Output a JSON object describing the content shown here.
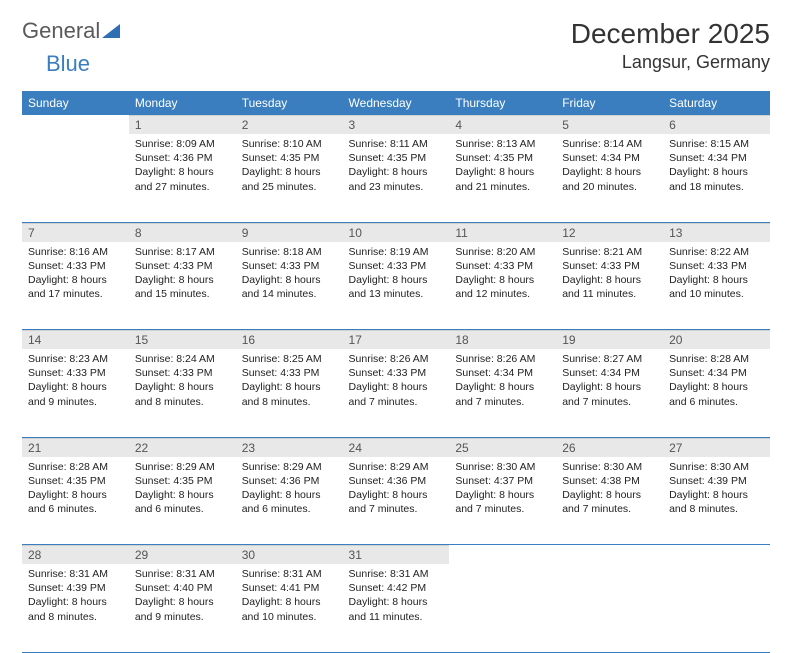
{
  "logo": {
    "word1": "General",
    "word2": "Blue"
  },
  "title": "December 2025",
  "location": "Langsur, Germany",
  "colors": {
    "header_bg": "#3a7ebf",
    "header_text": "#ffffff",
    "daynum_bg": "#e8e8e8",
    "row_border": "#3a7ebf",
    "logo_gray": "#5a5a5a",
    "logo_blue": "#3a7ebf"
  },
  "weekdays": [
    "Sunday",
    "Monday",
    "Tuesday",
    "Wednesday",
    "Thursday",
    "Friday",
    "Saturday"
  ],
  "weeks": [
    [
      null,
      {
        "n": "1",
        "sr": "8:09 AM",
        "ss": "4:36 PM",
        "dl": "8 hours and 27 minutes."
      },
      {
        "n": "2",
        "sr": "8:10 AM",
        "ss": "4:35 PM",
        "dl": "8 hours and 25 minutes."
      },
      {
        "n": "3",
        "sr": "8:11 AM",
        "ss": "4:35 PM",
        "dl": "8 hours and 23 minutes."
      },
      {
        "n": "4",
        "sr": "8:13 AM",
        "ss": "4:35 PM",
        "dl": "8 hours and 21 minutes."
      },
      {
        "n": "5",
        "sr": "8:14 AM",
        "ss": "4:34 PM",
        "dl": "8 hours and 20 minutes."
      },
      {
        "n": "6",
        "sr": "8:15 AM",
        "ss": "4:34 PM",
        "dl": "8 hours and 18 minutes."
      }
    ],
    [
      {
        "n": "7",
        "sr": "8:16 AM",
        "ss": "4:33 PM",
        "dl": "8 hours and 17 minutes."
      },
      {
        "n": "8",
        "sr": "8:17 AM",
        "ss": "4:33 PM",
        "dl": "8 hours and 15 minutes."
      },
      {
        "n": "9",
        "sr": "8:18 AM",
        "ss": "4:33 PM",
        "dl": "8 hours and 14 minutes."
      },
      {
        "n": "10",
        "sr": "8:19 AM",
        "ss": "4:33 PM",
        "dl": "8 hours and 13 minutes."
      },
      {
        "n": "11",
        "sr": "8:20 AM",
        "ss": "4:33 PM",
        "dl": "8 hours and 12 minutes."
      },
      {
        "n": "12",
        "sr": "8:21 AM",
        "ss": "4:33 PM",
        "dl": "8 hours and 11 minutes."
      },
      {
        "n": "13",
        "sr": "8:22 AM",
        "ss": "4:33 PM",
        "dl": "8 hours and 10 minutes."
      }
    ],
    [
      {
        "n": "14",
        "sr": "8:23 AM",
        "ss": "4:33 PM",
        "dl": "8 hours and 9 minutes."
      },
      {
        "n": "15",
        "sr": "8:24 AM",
        "ss": "4:33 PM",
        "dl": "8 hours and 8 minutes."
      },
      {
        "n": "16",
        "sr": "8:25 AM",
        "ss": "4:33 PM",
        "dl": "8 hours and 8 minutes."
      },
      {
        "n": "17",
        "sr": "8:26 AM",
        "ss": "4:33 PM",
        "dl": "8 hours and 7 minutes."
      },
      {
        "n": "18",
        "sr": "8:26 AM",
        "ss": "4:34 PM",
        "dl": "8 hours and 7 minutes."
      },
      {
        "n": "19",
        "sr": "8:27 AM",
        "ss": "4:34 PM",
        "dl": "8 hours and 7 minutes."
      },
      {
        "n": "20",
        "sr": "8:28 AM",
        "ss": "4:34 PM",
        "dl": "8 hours and 6 minutes."
      }
    ],
    [
      {
        "n": "21",
        "sr": "8:28 AM",
        "ss": "4:35 PM",
        "dl": "8 hours and 6 minutes."
      },
      {
        "n": "22",
        "sr": "8:29 AM",
        "ss": "4:35 PM",
        "dl": "8 hours and 6 minutes."
      },
      {
        "n": "23",
        "sr": "8:29 AM",
        "ss": "4:36 PM",
        "dl": "8 hours and 6 minutes."
      },
      {
        "n": "24",
        "sr": "8:29 AM",
        "ss": "4:36 PM",
        "dl": "8 hours and 7 minutes."
      },
      {
        "n": "25",
        "sr": "8:30 AM",
        "ss": "4:37 PM",
        "dl": "8 hours and 7 minutes."
      },
      {
        "n": "26",
        "sr": "8:30 AM",
        "ss": "4:38 PM",
        "dl": "8 hours and 7 minutes."
      },
      {
        "n": "27",
        "sr": "8:30 AM",
        "ss": "4:39 PM",
        "dl": "8 hours and 8 minutes."
      }
    ],
    [
      {
        "n": "28",
        "sr": "8:31 AM",
        "ss": "4:39 PM",
        "dl": "8 hours and 8 minutes."
      },
      {
        "n": "29",
        "sr": "8:31 AM",
        "ss": "4:40 PM",
        "dl": "8 hours and 9 minutes."
      },
      {
        "n": "30",
        "sr": "8:31 AM",
        "ss": "4:41 PM",
        "dl": "8 hours and 10 minutes."
      },
      {
        "n": "31",
        "sr": "8:31 AM",
        "ss": "4:42 PM",
        "dl": "8 hours and 11 minutes."
      },
      null,
      null,
      null
    ]
  ],
  "labels": {
    "sunrise": "Sunrise:",
    "sunset": "Sunset:",
    "daylight": "Daylight:"
  }
}
